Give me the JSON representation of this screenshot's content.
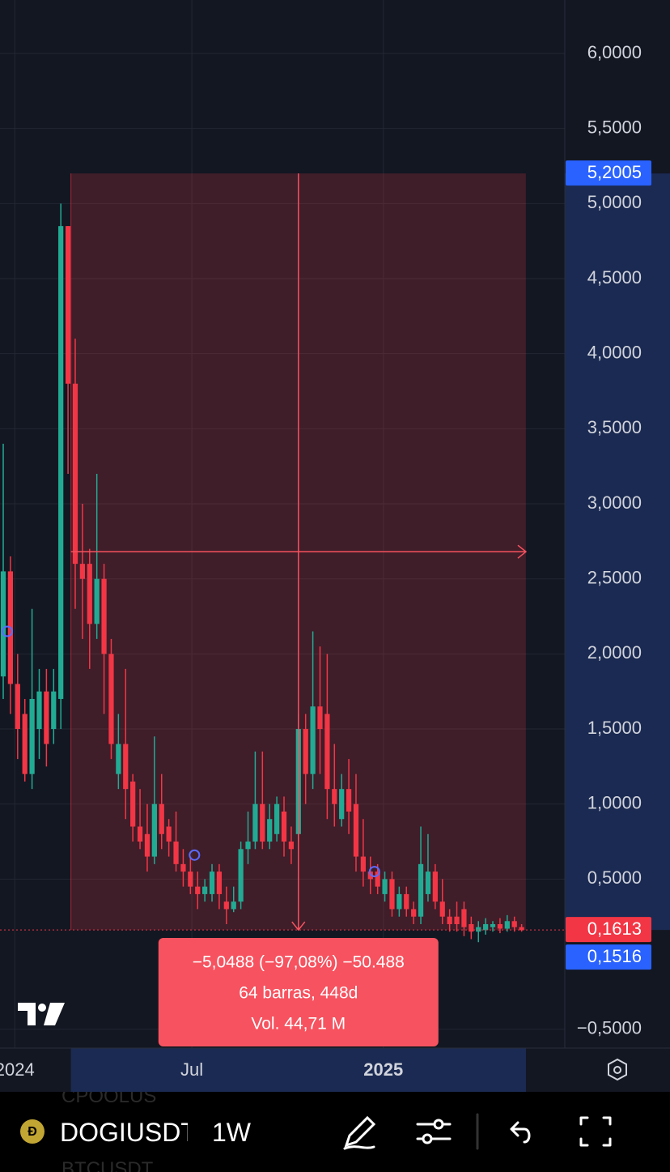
{
  "chart_data": {
    "type": "candlestick",
    "open": [
      1.85,
      2.55,
      1.8,
      1.6,
      1.2,
      1.5,
      1.75,
      1.5,
      1.7,
      4.85,
      3.8,
      2.6,
      2.6,
      2.2,
      2.5,
      2.0,
      1.2,
      1.4,
      1.15,
      0.85,
      0.8,
      0.65,
      1.0,
      0.85,
      0.75,
      0.6,
      0.55,
      0.45,
      0.4,
      0.4,
      0.55,
      0.35,
      0.3,
      0.35,
      0.7,
      0.75,
      1.0,
      0.75,
      0.8,
      0.95,
      0.75,
      0.8,
      1.5,
      1.2,
      1.65,
      1.6,
      1.1,
      0.9,
      1.1,
      1.0,
      0.65,
      0.55,
      0.55,
      0.4,
      0.5,
      0.3,
      0.4,
      0.3,
      0.25,
      0.4,
      0.55,
      0.35,
      0.25,
      0.25,
      0.3,
      0.2,
      0.15,
      0.16,
      0.18,
      0.2,
      0.17,
      0.22,
      0.18
    ],
    "high": [
      3.4,
      2.65,
      2.0,
      1.7,
      2.3,
      1.9,
      1.9,
      1.9,
      5.0,
      4.85,
      4.1,
      3.0,
      2.7,
      3.2,
      2.6,
      2.1,
      1.6,
      1.9,
      1.2,
      1.1,
      1.0,
      1.45,
      1.2,
      0.9,
      0.95,
      0.7,
      0.65,
      0.55,
      0.5,
      0.6,
      0.6,
      0.45,
      0.45,
      0.75,
      0.95,
      1.35,
      1.35,
      1.0,
      1.05,
      1.05,
      0.85,
      1.6,
      1.6,
      2.15,
      2.05,
      2.0,
      1.4,
      1.2,
      1.3,
      1.2,
      0.9,
      0.65,
      0.6,
      0.55,
      0.55,
      0.45,
      0.45,
      0.35,
      0.85,
      0.8,
      0.6,
      0.5,
      0.3,
      0.35,
      0.35,
      0.25,
      0.22,
      0.24,
      0.22,
      0.24,
      0.26,
      0.25,
      0.2
    ],
    "low": [
      1.7,
      1.6,
      1.3,
      1.15,
      1.1,
      1.3,
      1.25,
      1.4,
      1.5,
      3.2,
      2.3,
      2.1,
      1.9,
      2.1,
      1.6,
      1.3,
      1.1,
      0.9,
      0.75,
      0.7,
      0.55,
      0.6,
      0.7,
      0.65,
      0.55,
      0.45,
      0.4,
      0.3,
      0.35,
      0.35,
      0.3,
      0.2,
      0.28,
      0.3,
      0.6,
      0.7,
      0.7,
      0.7,
      0.75,
      0.65,
      0.6,
      0.75,
      1.0,
      1.1,
      1.2,
      0.9,
      0.85,
      0.85,
      0.8,
      0.55,
      0.45,
      0.4,
      0.4,
      0.35,
      0.25,
      0.25,
      0.25,
      0.2,
      0.2,
      0.35,
      0.3,
      0.2,
      0.15,
      0.15,
      0.12,
      0.1,
      0.08,
      0.13,
      0.15,
      0.14,
      0.15,
      0.15,
      0.15
    ],
    "close": [
      2.55,
      1.8,
      1.5,
      1.2,
      1.7,
      1.75,
      1.4,
      1.75,
      4.85,
      3.8,
      2.6,
      2.5,
      2.2,
      2.5,
      2.0,
      1.4,
      1.4,
      1.1,
      0.85,
      0.75,
      0.65,
      1.0,
      0.8,
      0.75,
      0.6,
      0.55,
      0.45,
      0.4,
      0.45,
      0.55,
      0.4,
      0.3,
      0.35,
      0.7,
      0.75,
      1.0,
      0.75,
      0.9,
      1.0,
      0.75,
      0.7,
      1.5,
      1.2,
      1.65,
      1.5,
      1.1,
      1.0,
      1.1,
      0.95,
      0.65,
      0.55,
      0.5,
      0.45,
      0.5,
      0.3,
      0.4,
      0.3,
      0.25,
      0.6,
      0.55,
      0.35,
      0.25,
      0.2,
      0.2,
      0.18,
      0.15,
      0.18,
      0.2,
      0.2,
      0.17,
      0.22,
      0.18,
      0.16
    ],
    "up_color": "#22ab94",
    "down_color": "#f23645",
    "xlim": [
      -0.45,
      78
    ],
    "xticks": [
      {
        "value": 1.6,
        "label": "2024"
      },
      {
        "value": 26.2,
        "label": "Jul"
      },
      {
        "value": 52.8,
        "label": "2025"
      }
    ],
    "ylim": [
      -0.604,
      6.356
    ],
    "yticks": [
      {
        "value": 6,
        "label": "6,0000"
      },
      {
        "value": 5.5,
        "label": "5,5000"
      },
      {
        "value": 5,
        "label": "5,0000"
      },
      {
        "value": 4.5,
        "label": "4,5000"
      },
      {
        "value": 4,
        "label": "4,0000"
      },
      {
        "value": 3.5,
        "label": "3,5000"
      },
      {
        "value": 3,
        "label": "3,0000"
      },
      {
        "value": 2.5,
        "label": "2,5000"
      },
      {
        "value": 2,
        "label": "2,0000"
      },
      {
        "value": 1.5,
        "label": "1,5000"
      },
      {
        "value": 1,
        "label": "1,0000"
      },
      {
        "value": 0.5,
        "label": "0,5000"
      },
      {
        "value": -0.5,
        "label": "−0,5000"
      }
    ],
    "grid": true,
    "price_labels": [
      {
        "value": 5.2005,
        "label": "5,2005",
        "color": "#2962ff"
      },
      {
        "value": 0.1613,
        "label": "0,1613",
        "color": "#f23645"
      },
      {
        "value": 0.1516,
        "label": "0,1516",
        "color": "#2962ff"
      }
    ],
    "measure_x": [
      9.4,
      72.6
    ],
    "tooltip": [
      "−5,0488 (−97,08%) −50.488",
      "64 barras, 448d",
      "Vol. 44,71 M"
    ]
  },
  "toolbar": {
    "symbol": "DOGIUSDT",
    "interval": "1W",
    "watchlist": [
      "CPOOLUS",
      "BTCUSDT"
    ]
  }
}
